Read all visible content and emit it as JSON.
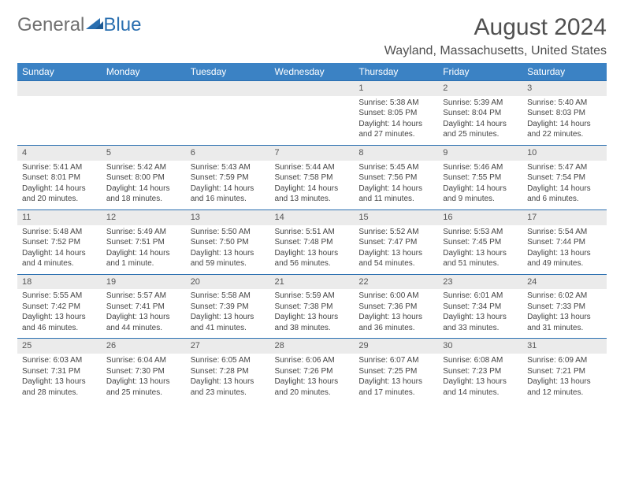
{
  "logo": {
    "part1": "General",
    "part2": "Blue"
  },
  "title": "August 2024",
  "location": "Wayland, Massachusetts, United States",
  "colors": {
    "header_bg": "#3b82c4",
    "header_text": "#ffffff",
    "rule": "#2a6fb0",
    "daynum_bg": "#ebebeb",
    "text": "#444444",
    "title_text": "#505050"
  },
  "typography": {
    "title_fontsize": 30,
    "location_fontsize": 16,
    "header_fontsize": 12,
    "daynum_fontsize": 11,
    "cell_fontsize": 10
  },
  "day_headers": [
    "Sunday",
    "Monday",
    "Tuesday",
    "Wednesday",
    "Thursday",
    "Friday",
    "Saturday"
  ],
  "weeks": [
    [
      null,
      null,
      null,
      null,
      {
        "n": "1",
        "sr": "Sunrise: 5:38 AM",
        "ss": "Sunset: 8:05 PM",
        "dl": "Daylight: 14 hours and 27 minutes."
      },
      {
        "n": "2",
        "sr": "Sunrise: 5:39 AM",
        "ss": "Sunset: 8:04 PM",
        "dl": "Daylight: 14 hours and 25 minutes."
      },
      {
        "n": "3",
        "sr": "Sunrise: 5:40 AM",
        "ss": "Sunset: 8:03 PM",
        "dl": "Daylight: 14 hours and 22 minutes."
      }
    ],
    [
      {
        "n": "4",
        "sr": "Sunrise: 5:41 AM",
        "ss": "Sunset: 8:01 PM",
        "dl": "Daylight: 14 hours and 20 minutes."
      },
      {
        "n": "5",
        "sr": "Sunrise: 5:42 AM",
        "ss": "Sunset: 8:00 PM",
        "dl": "Daylight: 14 hours and 18 minutes."
      },
      {
        "n": "6",
        "sr": "Sunrise: 5:43 AM",
        "ss": "Sunset: 7:59 PM",
        "dl": "Daylight: 14 hours and 16 minutes."
      },
      {
        "n": "7",
        "sr": "Sunrise: 5:44 AM",
        "ss": "Sunset: 7:58 PM",
        "dl": "Daylight: 14 hours and 13 minutes."
      },
      {
        "n": "8",
        "sr": "Sunrise: 5:45 AM",
        "ss": "Sunset: 7:56 PM",
        "dl": "Daylight: 14 hours and 11 minutes."
      },
      {
        "n": "9",
        "sr": "Sunrise: 5:46 AM",
        "ss": "Sunset: 7:55 PM",
        "dl": "Daylight: 14 hours and 9 minutes."
      },
      {
        "n": "10",
        "sr": "Sunrise: 5:47 AM",
        "ss": "Sunset: 7:54 PM",
        "dl": "Daylight: 14 hours and 6 minutes."
      }
    ],
    [
      {
        "n": "11",
        "sr": "Sunrise: 5:48 AM",
        "ss": "Sunset: 7:52 PM",
        "dl": "Daylight: 14 hours and 4 minutes."
      },
      {
        "n": "12",
        "sr": "Sunrise: 5:49 AM",
        "ss": "Sunset: 7:51 PM",
        "dl": "Daylight: 14 hours and 1 minute."
      },
      {
        "n": "13",
        "sr": "Sunrise: 5:50 AM",
        "ss": "Sunset: 7:50 PM",
        "dl": "Daylight: 13 hours and 59 minutes."
      },
      {
        "n": "14",
        "sr": "Sunrise: 5:51 AM",
        "ss": "Sunset: 7:48 PM",
        "dl": "Daylight: 13 hours and 56 minutes."
      },
      {
        "n": "15",
        "sr": "Sunrise: 5:52 AM",
        "ss": "Sunset: 7:47 PM",
        "dl": "Daylight: 13 hours and 54 minutes."
      },
      {
        "n": "16",
        "sr": "Sunrise: 5:53 AM",
        "ss": "Sunset: 7:45 PM",
        "dl": "Daylight: 13 hours and 51 minutes."
      },
      {
        "n": "17",
        "sr": "Sunrise: 5:54 AM",
        "ss": "Sunset: 7:44 PM",
        "dl": "Daylight: 13 hours and 49 minutes."
      }
    ],
    [
      {
        "n": "18",
        "sr": "Sunrise: 5:55 AM",
        "ss": "Sunset: 7:42 PM",
        "dl": "Daylight: 13 hours and 46 minutes."
      },
      {
        "n": "19",
        "sr": "Sunrise: 5:57 AM",
        "ss": "Sunset: 7:41 PM",
        "dl": "Daylight: 13 hours and 44 minutes."
      },
      {
        "n": "20",
        "sr": "Sunrise: 5:58 AM",
        "ss": "Sunset: 7:39 PM",
        "dl": "Daylight: 13 hours and 41 minutes."
      },
      {
        "n": "21",
        "sr": "Sunrise: 5:59 AM",
        "ss": "Sunset: 7:38 PM",
        "dl": "Daylight: 13 hours and 38 minutes."
      },
      {
        "n": "22",
        "sr": "Sunrise: 6:00 AM",
        "ss": "Sunset: 7:36 PM",
        "dl": "Daylight: 13 hours and 36 minutes."
      },
      {
        "n": "23",
        "sr": "Sunrise: 6:01 AM",
        "ss": "Sunset: 7:34 PM",
        "dl": "Daylight: 13 hours and 33 minutes."
      },
      {
        "n": "24",
        "sr": "Sunrise: 6:02 AM",
        "ss": "Sunset: 7:33 PM",
        "dl": "Daylight: 13 hours and 31 minutes."
      }
    ],
    [
      {
        "n": "25",
        "sr": "Sunrise: 6:03 AM",
        "ss": "Sunset: 7:31 PM",
        "dl": "Daylight: 13 hours and 28 minutes."
      },
      {
        "n": "26",
        "sr": "Sunrise: 6:04 AM",
        "ss": "Sunset: 7:30 PM",
        "dl": "Daylight: 13 hours and 25 minutes."
      },
      {
        "n": "27",
        "sr": "Sunrise: 6:05 AM",
        "ss": "Sunset: 7:28 PM",
        "dl": "Daylight: 13 hours and 23 minutes."
      },
      {
        "n": "28",
        "sr": "Sunrise: 6:06 AM",
        "ss": "Sunset: 7:26 PM",
        "dl": "Daylight: 13 hours and 20 minutes."
      },
      {
        "n": "29",
        "sr": "Sunrise: 6:07 AM",
        "ss": "Sunset: 7:25 PM",
        "dl": "Daylight: 13 hours and 17 minutes."
      },
      {
        "n": "30",
        "sr": "Sunrise: 6:08 AM",
        "ss": "Sunset: 7:23 PM",
        "dl": "Daylight: 13 hours and 14 minutes."
      },
      {
        "n": "31",
        "sr": "Sunrise: 6:09 AM",
        "ss": "Sunset: 7:21 PM",
        "dl": "Daylight: 13 hours and 12 minutes."
      }
    ]
  ]
}
